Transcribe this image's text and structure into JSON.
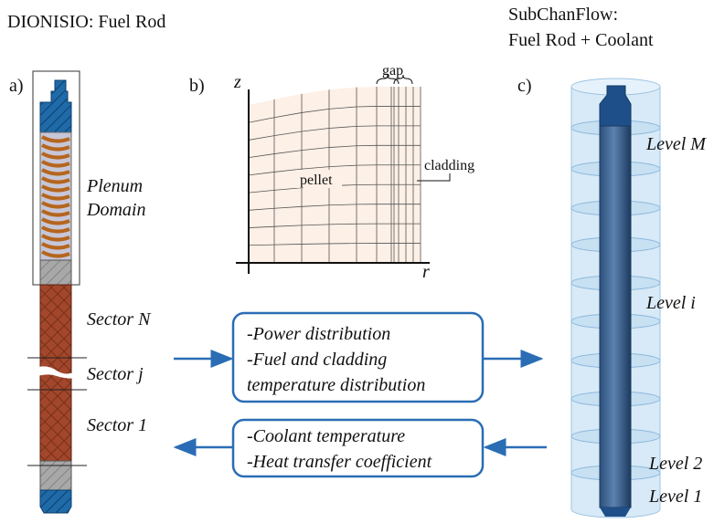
{
  "header": {
    "left_title": "DIONISIO: Fuel Rod",
    "right_title_lines": [
      "SubChanFlow:",
      "Fuel Rod + Coolant"
    ]
  },
  "panel_a": {
    "label": "a)",
    "plenum_lines": [
      "Plenum",
      "Domain"
    ],
    "sectors": [
      "Sector N",
      "Sector j",
      "Sector 1"
    ]
  },
  "panel_b": {
    "label": "b)",
    "z_axis": "z",
    "r_axis": "r",
    "gap": "gap",
    "pellet": "pellet",
    "cladding": "cladding"
  },
  "exchange": {
    "to_right_lines": [
      "-Power distribution",
      "-Fuel and cladding",
      "temperature distribution"
    ],
    "to_left_lines": [
      "-Coolant temperature",
      "-Heat transfer coefficient"
    ]
  },
  "panel_c": {
    "label": "c)",
    "levels": [
      "Level M",
      "Level i",
      "Level 2",
      "Level 1"
    ]
  }
}
